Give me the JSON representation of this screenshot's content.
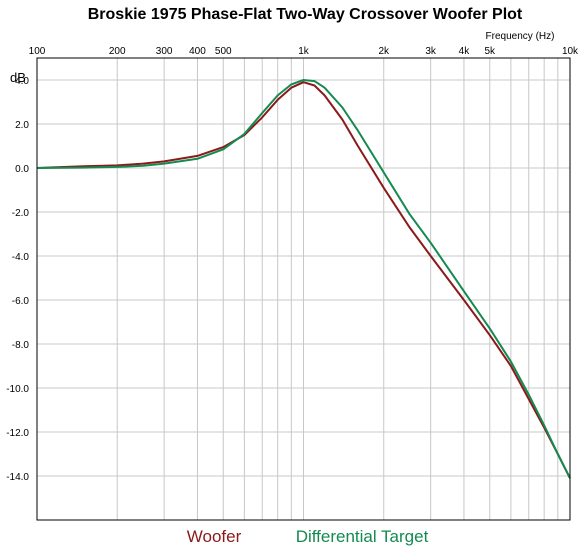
{
  "chart_data": {
    "type": "line",
    "title": "Broskie 1975 Phase-Flat Two-Way Crossover Woofer Plot",
    "xlabel": "Frequency   (Hz)",
    "ylabel": "dB",
    "x_scale": "log",
    "xlim": [
      100,
      10000
    ],
    "ylim": [
      -16,
      5
    ],
    "x_ticks": [
      {
        "value": 100,
        "label": "100"
      },
      {
        "value": 200,
        "label": "200"
      },
      {
        "value": 300,
        "label": "300"
      },
      {
        "value": 400,
        "label": "400"
      },
      {
        "value": 500,
        "label": "500"
      },
      {
        "value": 1000,
        "label": "1k"
      },
      {
        "value": 2000,
        "label": "2k"
      },
      {
        "value": 3000,
        "label": "3k"
      },
      {
        "value": 4000,
        "label": "4k"
      },
      {
        "value": 5000,
        "label": "5k"
      },
      {
        "value": 10000,
        "label": "10k"
      }
    ],
    "y_ticks": [
      {
        "value": 4,
        "label": "4.0"
      },
      {
        "value": 2,
        "label": "2.0"
      },
      {
        "value": 0,
        "label": "0.0"
      },
      {
        "value": -2,
        "label": "-2.0"
      },
      {
        "value": -4,
        "label": "-4.0"
      },
      {
        "value": -6,
        "label": "-6.0"
      },
      {
        "value": -8,
        "label": "-8.0"
      },
      {
        "value": -10,
        "label": "-10.0"
      },
      {
        "value": -12,
        "label": "-12.0"
      },
      {
        "value": -14,
        "label": "-14.0"
      }
    ],
    "grid": true,
    "legend_position": "bottom-center",
    "series": [
      {
        "name": "Woofer",
        "color": "#8b1a1a",
        "points": [
          [
            100,
            0.0
          ],
          [
            150,
            0.08
          ],
          [
            200,
            0.12
          ],
          [
            250,
            0.2
          ],
          [
            300,
            0.3
          ],
          [
            400,
            0.55
          ],
          [
            500,
            0.95
          ],
          [
            600,
            1.5
          ],
          [
            700,
            2.3
          ],
          [
            800,
            3.1
          ],
          [
            900,
            3.65
          ],
          [
            1000,
            3.9
          ],
          [
            1100,
            3.75
          ],
          [
            1200,
            3.3
          ],
          [
            1400,
            2.2
          ],
          [
            1600,
            1.0
          ],
          [
            2000,
            -0.9
          ],
          [
            2500,
            -2.7
          ],
          [
            3000,
            -4.0
          ],
          [
            4000,
            -6.0
          ],
          [
            5000,
            -7.6
          ],
          [
            6000,
            -9.0
          ],
          [
            7000,
            -10.5
          ],
          [
            8000,
            -11.8
          ],
          [
            9000,
            -13.0
          ],
          [
            10000,
            -14.1
          ]
        ]
      },
      {
        "name": "Differential Target",
        "color": "#148a50",
        "points": [
          [
            100,
            0.0
          ],
          [
            150,
            0.02
          ],
          [
            200,
            0.05
          ],
          [
            250,
            0.1
          ],
          [
            300,
            0.2
          ],
          [
            400,
            0.42
          ],
          [
            500,
            0.85
          ],
          [
            600,
            1.55
          ],
          [
            700,
            2.5
          ],
          [
            800,
            3.3
          ],
          [
            900,
            3.8
          ],
          [
            1000,
            4.0
          ],
          [
            1100,
            3.95
          ],
          [
            1200,
            3.65
          ],
          [
            1400,
            2.75
          ],
          [
            1600,
            1.7
          ],
          [
            2000,
            -0.2
          ],
          [
            2500,
            -2.1
          ],
          [
            3000,
            -3.4
          ],
          [
            4000,
            -5.6
          ],
          [
            5000,
            -7.3
          ],
          [
            6000,
            -8.8
          ],
          [
            7000,
            -10.3
          ],
          [
            8000,
            -11.7
          ],
          [
            9000,
            -13.0
          ],
          [
            10000,
            -14.1
          ]
        ]
      }
    ]
  }
}
